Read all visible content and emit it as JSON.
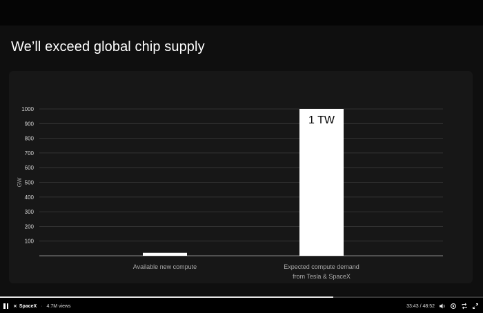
{
  "slide": {
    "title": "We’ll exceed global chip supply"
  },
  "chart_data": {
    "type": "bar",
    "categories": [
      "Available new compute",
      "Expected compute demand\nfrom Tesla & SpaceX"
    ],
    "category_lines": [
      [
        "Available new compute"
      ],
      [
        "Expected compute demand",
        "from Tesla & SpaceX"
      ]
    ],
    "values": [
      20,
      1000
    ],
    "data_labels": [
      "",
      "1 TW"
    ],
    "title": "",
    "xlabel": "",
    "ylabel": "GW",
    "ylim": [
      0,
      1000
    ],
    "yticks": [
      100,
      200,
      300,
      400,
      500,
      600,
      700,
      800,
      900,
      1000
    ],
    "grid": true,
    "bar_color": "#ffffff",
    "label_color": "#000000"
  },
  "player": {
    "channel": "SpaceX",
    "separator": "·",
    "views": "4.7M views",
    "current_time": "33:43",
    "duration": "48:52",
    "time_separator": "/",
    "progress": 0.69
  },
  "icons": {
    "pause": "pause-icon",
    "brand": "spacex-logo-icon",
    "volume": "volume-icon",
    "settings": "settings-icon",
    "repeat": "repeat-icon",
    "fullscreen": "fullscreen-icon"
  }
}
